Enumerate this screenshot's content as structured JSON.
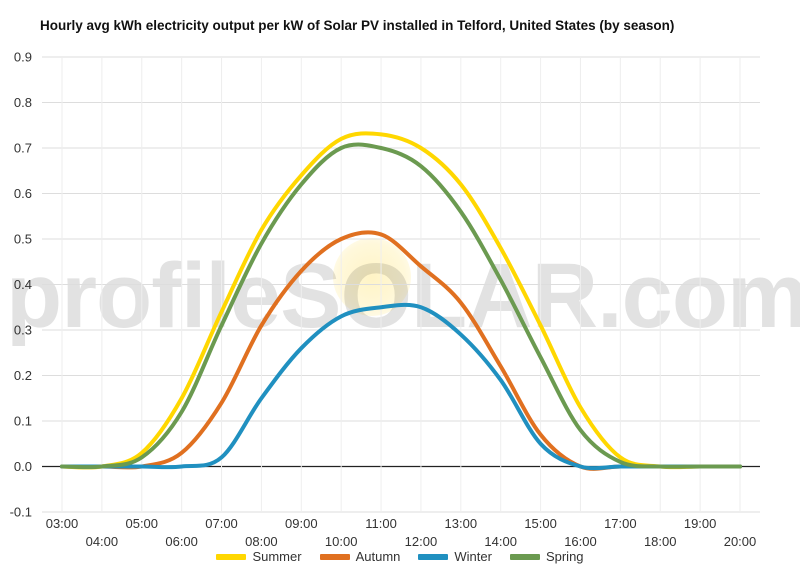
{
  "chart_data": {
    "type": "line",
    "title": "Hourly avg kWh electricity output per kW of Solar PV installed in Telford, United States (by season)",
    "watermark": "profileSOLAR.com",
    "xlabel": "",
    "ylabel": "",
    "ylim": [
      -0.1,
      0.9
    ],
    "yticks": [
      "0.9",
      "0.8",
      "0.7",
      "0.6",
      "0.5",
      "0.4",
      "0.3",
      "0.2",
      "0.1",
      "0.0",
      "-0.1"
    ],
    "grid": true,
    "legend_position": "bottom",
    "x": [
      "03:00",
      "04:00",
      "05:00",
      "06:00",
      "07:00",
      "08:00",
      "09:00",
      "10:00",
      "11:00",
      "12:00",
      "13:00",
      "14:00",
      "15:00",
      "16:00",
      "17:00",
      "18:00",
      "19:00",
      "20:00"
    ],
    "series": [
      {
        "name": "Summer",
        "color": "#FFD700",
        "values": [
          0.0,
          0.0,
          0.03,
          0.15,
          0.34,
          0.52,
          0.64,
          0.72,
          0.73,
          0.7,
          0.62,
          0.48,
          0.31,
          0.13,
          0.02,
          0.0,
          0.0,
          0.0
        ]
      },
      {
        "name": "Autumn",
        "color": "#E07020",
        "values": [
          0.0,
          0.0,
          0.0,
          0.03,
          0.14,
          0.31,
          0.43,
          0.5,
          0.51,
          0.44,
          0.36,
          0.22,
          0.07,
          0.0,
          0.0,
          0.0,
          0.0,
          0.0
        ]
      },
      {
        "name": "Winter",
        "color": "#2090C0",
        "values": [
          0.0,
          0.0,
          0.0,
          0.0,
          0.02,
          0.15,
          0.26,
          0.33,
          0.35,
          0.35,
          0.29,
          0.19,
          0.05,
          0.0,
          0.0,
          0.0,
          0.0,
          0.0
        ]
      },
      {
        "name": "Spring",
        "color": "#6B9A50",
        "values": [
          0.0,
          0.0,
          0.02,
          0.12,
          0.31,
          0.49,
          0.62,
          0.7,
          0.7,
          0.66,
          0.56,
          0.41,
          0.24,
          0.08,
          0.01,
          0.0,
          0.0,
          0.0
        ]
      }
    ]
  }
}
